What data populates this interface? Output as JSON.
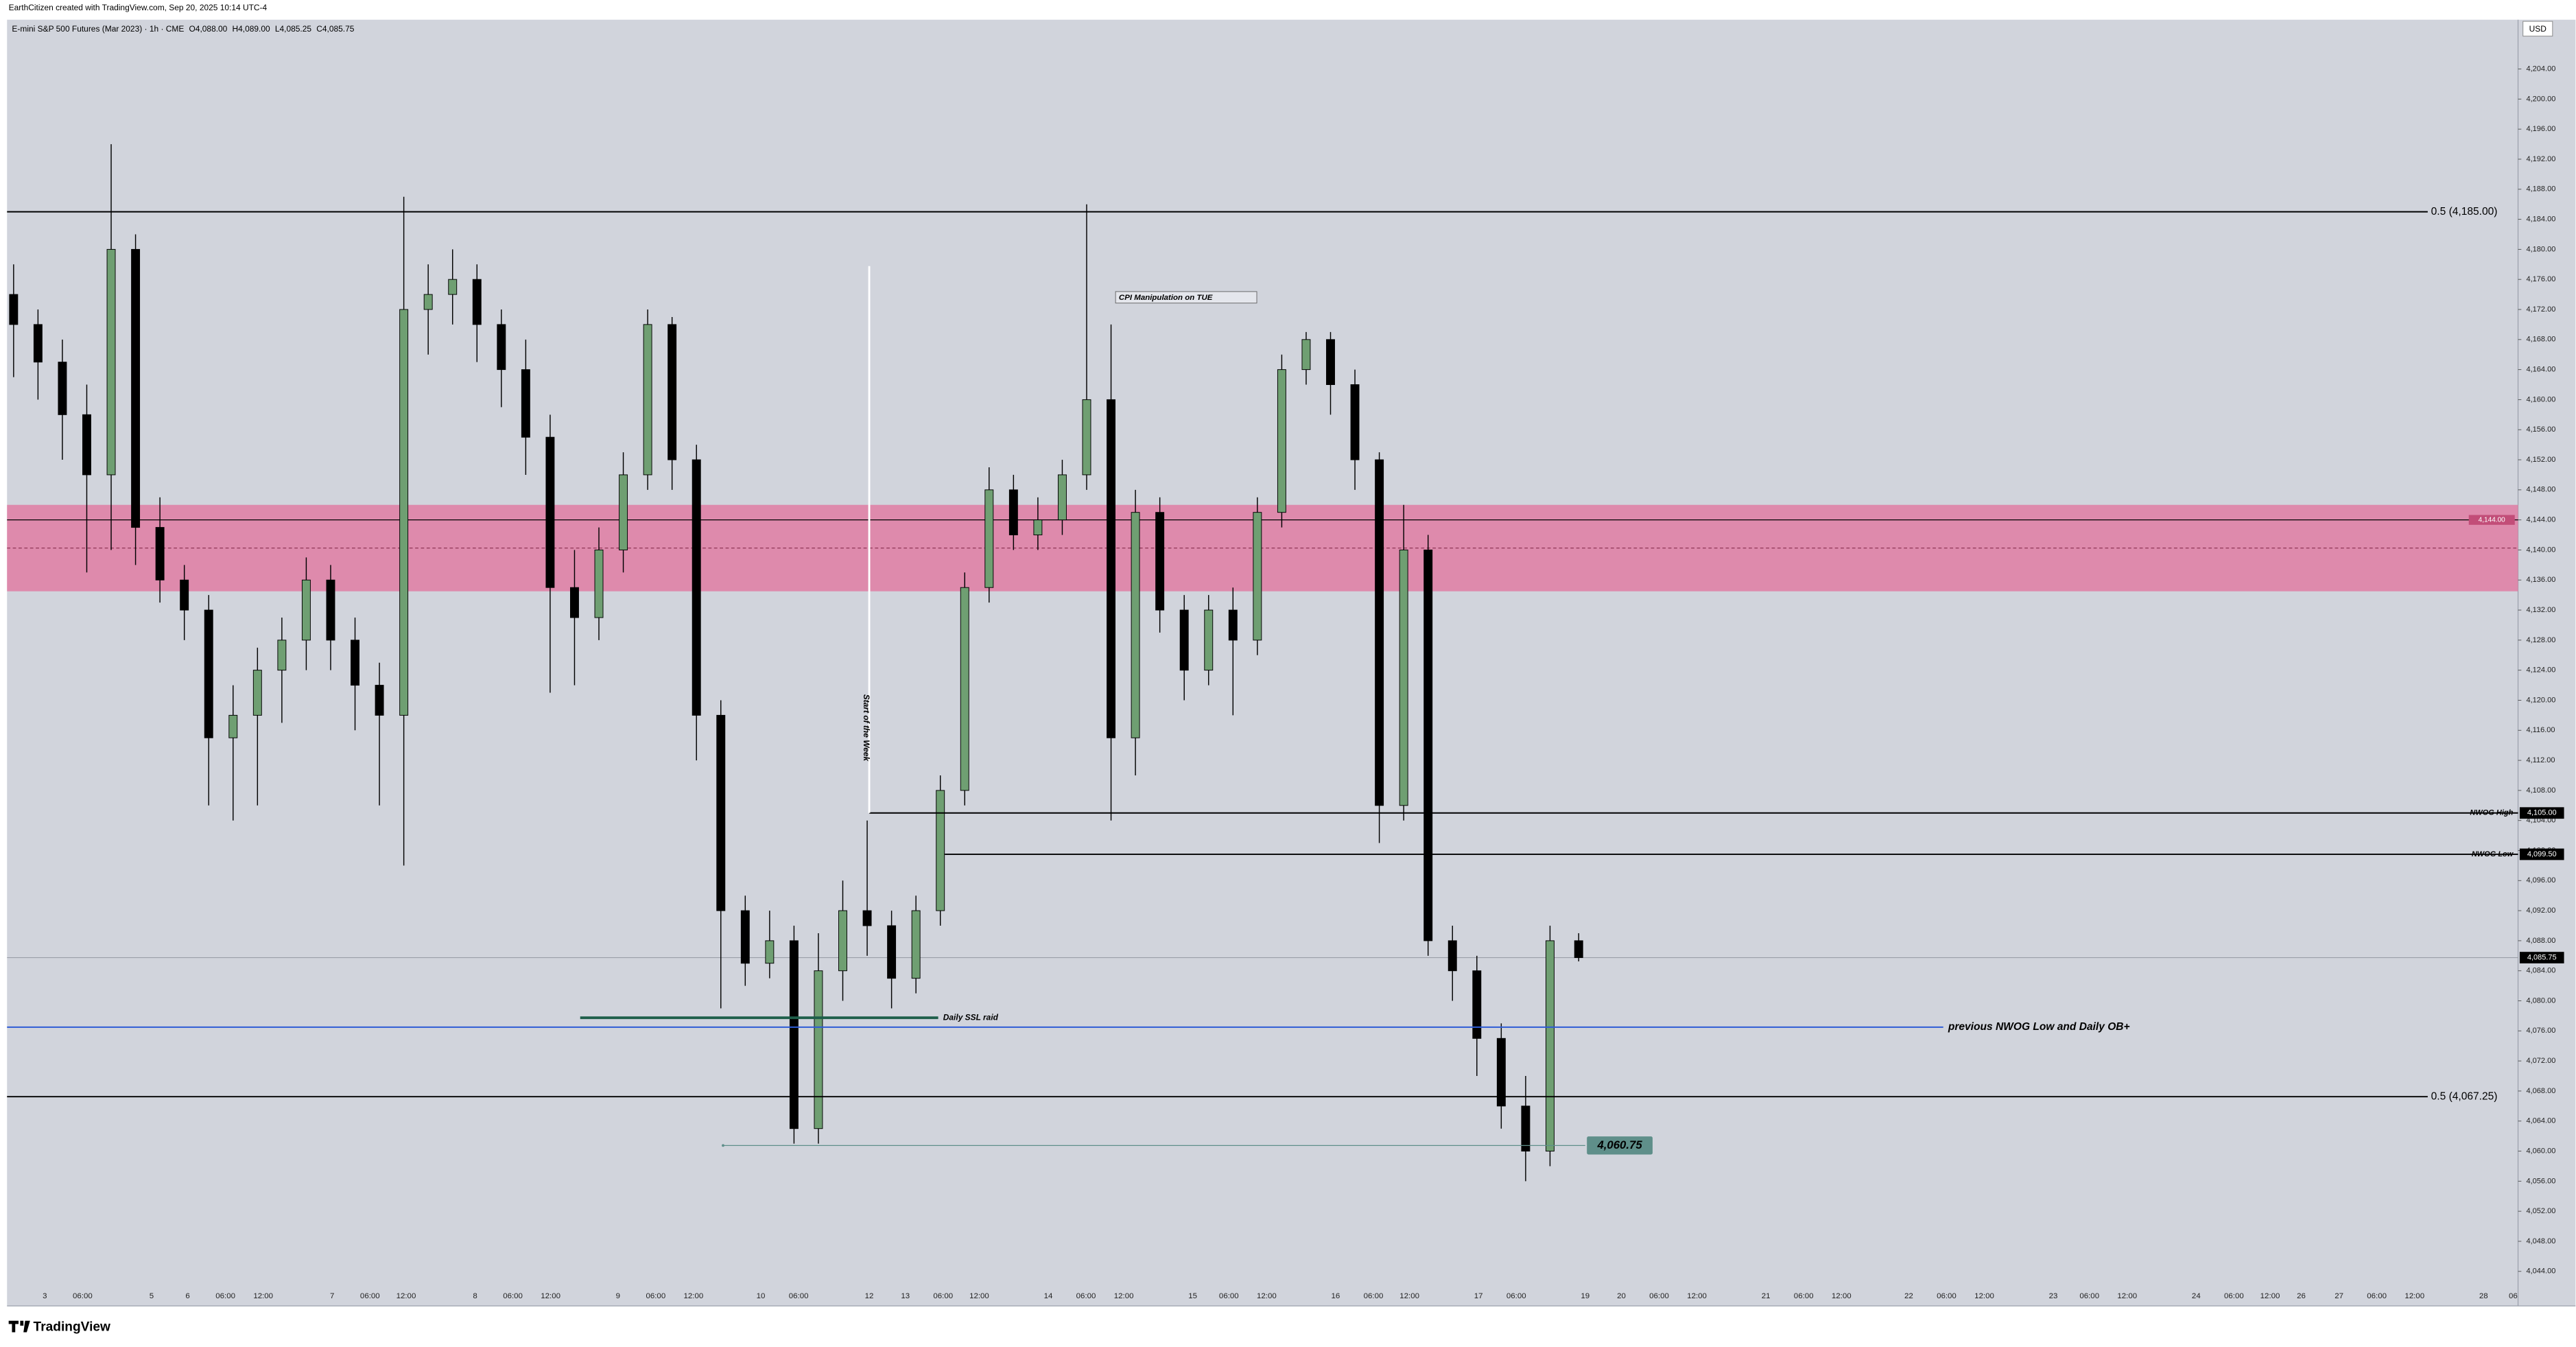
{
  "chart_data": {
    "type": "candlestick",
    "watermark": "EarthCitizen created with TradingView.com, Sep 20, 2025 10:14 UTC-4",
    "title": "E-mini S&P 500 Futures (Mar 2023) · 1h · CME",
    "ohlc_header": [
      "O4,088.00",
      "H4,089.00",
      "L4,085.25",
      "C4,085.75"
    ],
    "currency": "USD",
    "logo": "TradingView",
    "up_color": "#6f9f72",
    "down_color": "#000000",
    "ylim": [
      4039.4,
      4210.56
    ],
    "yticks": [
      {
        "value": 4044,
        "label": "4,044.00"
      },
      {
        "value": 4048,
        "label": "4,048.00"
      },
      {
        "value": 4052,
        "label": "4,052.00"
      },
      {
        "value": 4056,
        "label": "4,056.00"
      },
      {
        "value": 4060,
        "label": "4,060.00"
      },
      {
        "value": 4064,
        "label": "4,064.00"
      },
      {
        "value": 4068,
        "label": "4,068.00"
      },
      {
        "value": 4072,
        "label": "4,072.00"
      },
      {
        "value": 4076,
        "label": "4,076.00"
      },
      {
        "value": 4080,
        "label": "4,080.00"
      },
      {
        "value": 4084,
        "label": "4,084.00"
      },
      {
        "value": 4088,
        "label": "4,088.00"
      },
      {
        "value": 4092,
        "label": "4,092.00"
      },
      {
        "value": 4096,
        "label": "4,096.00"
      },
      {
        "value": 4100,
        "label": "4,100.00"
      },
      {
        "value": 4104,
        "label": "4,104.00"
      },
      {
        "value": 4108,
        "label": "4,108.00"
      },
      {
        "value": 4112,
        "label": "4,112.00"
      },
      {
        "value": 4116,
        "label": "4,116.00"
      },
      {
        "value": 4120,
        "label": "4,120.00"
      },
      {
        "value": 4124,
        "label": "4,124.00"
      },
      {
        "value": 4128,
        "label": "4,128.00"
      },
      {
        "value": 4132,
        "label": "4,132.00"
      },
      {
        "value": 4136,
        "label": "4,136.00"
      },
      {
        "value": 4140,
        "label": "4,140.00"
      },
      {
        "value": 4144,
        "label": "4,144.00"
      },
      {
        "value": 4148,
        "label": "4,148.00"
      },
      {
        "value": 4152,
        "label": "4,152.00"
      },
      {
        "value": 4156,
        "label": "4,156.00"
      },
      {
        "value": 4160,
        "label": "4,160.00"
      },
      {
        "value": 4164,
        "label": "4,164.00"
      },
      {
        "value": 4168,
        "label": "4,168.00"
      },
      {
        "value": 4172,
        "label": "4,172.00"
      },
      {
        "value": 4176,
        "label": "4,176.00"
      },
      {
        "value": 4180,
        "label": "4,180.00"
      },
      {
        "value": 4184,
        "label": "4,184.00"
      },
      {
        "value": 4188,
        "label": "4,188.00"
      },
      {
        "value": 4192,
        "label": "4,192.00"
      },
      {
        "value": 4196,
        "label": "4,196.00"
      },
      {
        "value": 4200,
        "label": "4,200.00"
      },
      {
        "value": 4204,
        "label": "4,204.00"
      }
    ],
    "xticks": [
      "3",
      "06:00",
      "5",
      "6",
      "06:00",
      "12:00",
      "7",
      "06:00",
      "12:00",
      "8",
      "06:00",
      "12:00",
      "9",
      "06:00",
      "12:00",
      "10",
      "06:00",
      "12",
      "13",
      "06:00",
      "12:00",
      "14",
      "06:00",
      "12:00",
      "15",
      "06:00",
      "12:00",
      "16",
      "06:00",
      "12:00",
      "17",
      "06:00",
      "19",
      "20",
      "06:00",
      "12:00",
      "21",
      "06:00",
      "12:00",
      "22",
      "06:00",
      "12:00",
      "23",
      "06:00",
      "12:00",
      "24",
      "06:00",
      "12:00",
      "26",
      "27",
      "06:00",
      "12:00",
      "28",
      "06"
    ],
    "ohlc": [
      [
        4174,
        4178,
        4163,
        4170
      ],
      [
        4170,
        4172,
        4160,
        4165
      ],
      [
        4165,
        4168,
        4152,
        4158
      ],
      [
        4158,
        4162,
        4137,
        4150
      ],
      [
        4150,
        4194,
        4140,
        4180
      ],
      [
        4180,
        4182,
        4138,
        4143
      ],
      [
        4143,
        4147,
        4133,
        4136
      ],
      [
        4136,
        4138,
        4128,
        4132
      ],
      [
        4132,
        4134,
        4106,
        4115
      ],
      [
        4115,
        4122,
        4104,
        4118
      ],
      [
        4118,
        4127,
        4106,
        4124
      ],
      [
        4124,
        4131,
        4117,
        4128
      ],
      [
        4128,
        4139,
        4124,
        4136
      ],
      [
        4136,
        4138,
        4124,
        4128
      ],
      [
        4128,
        4131,
        4116,
        4122
      ],
      [
        4122,
        4125,
        4106,
        4118
      ],
      [
        4118,
        4187,
        4098,
        4172
      ],
      [
        4172,
        4178,
        4166,
        4174
      ],
      [
        4174,
        4180,
        4170,
        4176
      ],
      [
        4176,
        4178,
        4165,
        4170
      ],
      [
        4170,
        4172,
        4159,
        4164
      ],
      [
        4164,
        4168,
        4150,
        4155
      ],
      [
        4155,
        4158,
        4121,
        4135
      ],
      [
        4135,
        4140,
        4122,
        4131
      ],
      [
        4131,
        4143,
        4128,
        4140
      ],
      [
        4140,
        4153,
        4137,
        4150
      ],
      [
        4150,
        4172,
        4148,
        4170
      ],
      [
        4170,
        4171,
        4148,
        4152
      ],
      [
        4152,
        4154,
        4112,
        4118
      ],
      [
        4118,
        4120,
        4079,
        4092
      ],
      [
        4092,
        4094,
        4082,
        4085
      ],
      [
        4085,
        4092,
        4083,
        4088
      ],
      [
        4088,
        4090,
        4061,
        4063
      ],
      [
        4063,
        4089,
        4061,
        4084
      ],
      [
        4084,
        4096,
        4080,
        4092
      ],
      [
        4092,
        4104,
        4086,
        4090
      ],
      [
        4090,
        4092,
        4079,
        4083
      ],
      [
        4083,
        4094,
        4081,
        4092
      ],
      [
        4092,
        4110,
        4090,
        4108
      ],
      [
        4108,
        4137,
        4106,
        4135
      ],
      [
        4135,
        4151,
        4133,
        4148
      ],
      [
        4148,
        4150,
        4140,
        4142
      ],
      [
        4142,
        4147,
        4140,
        4144
      ],
      [
        4144,
        4152,
        4142,
        4150
      ],
      [
        4150,
        4186,
        4148,
        4160
      ],
      [
        4160,
        4170,
        4104,
        4115
      ],
      [
        4115,
        4148,
        4110,
        4145
      ],
      [
        4145,
        4147,
        4129,
        4132
      ],
      [
        4132,
        4134,
        4120,
        4124
      ],
      [
        4124,
        4134,
        4122,
        4132
      ],
      [
        4132,
        4135,
        4118,
        4128
      ],
      [
        4128,
        4147,
        4126,
        4145
      ],
      [
        4145,
        4166,
        4143,
        4164
      ],
      [
        4164,
        4169,
        4162,
        4168
      ],
      [
        4168,
        4169,
        4158,
        4162
      ],
      [
        4162,
        4164,
        4148,
        4152
      ],
      [
        4152,
        4153,
        4101,
        4106
      ],
      [
        4106,
        4146,
        4104,
        4140
      ],
      [
        4140,
        4142,
        4086,
        4088
      ],
      [
        4088,
        4090,
        4080,
        4084
      ],
      [
        4084,
        4086,
        4070,
        4075
      ],
      [
        4075,
        4077,
        4063,
        4066
      ],
      [
        4066,
        4070,
        4056,
        4060
      ],
      [
        4060,
        4090,
        4058,
        4088
      ],
      [
        4088,
        4089,
        4085.25,
        4085.75
      ]
    ],
    "zone": {
      "top": 4146,
      "bottom": 4134.5,
      "midline": 4140.25,
      "color": "#e07ca3",
      "value": 4144,
      "value_label": "4,144.00"
    },
    "last_price": {
      "value": 4085.75,
      "value_label": "4,085.75"
    },
    "levels": [
      {
        "label": "0.5 (4,185.00)",
        "value": 4185,
        "color": "#000000"
      },
      {
        "label": "0.5 (4,067.25)",
        "value": 4067.25,
        "color": "#000000"
      },
      {
        "label": "NWOG High",
        "value": 4105,
        "value_label": "4,105.00",
        "color": "#000000"
      },
      {
        "label": "NWOG Low",
        "value": 4099.5,
        "value_label": "4,099.50",
        "color": "#000000"
      },
      {
        "label": "previous NWOG Low and Daily OB+",
        "value": 4076.5,
        "color": "#2e5bd6"
      },
      {
        "label": "Daily SSL raid",
        "value": 4077.75,
        "color": "#1e5e4a"
      },
      {
        "label": "4,060.75",
        "value": 4060.75,
        "color": "#5f8f8a"
      }
    ],
    "notes": [
      "Start of the Week",
      "CPI Manipulation on TUE"
    ]
  }
}
